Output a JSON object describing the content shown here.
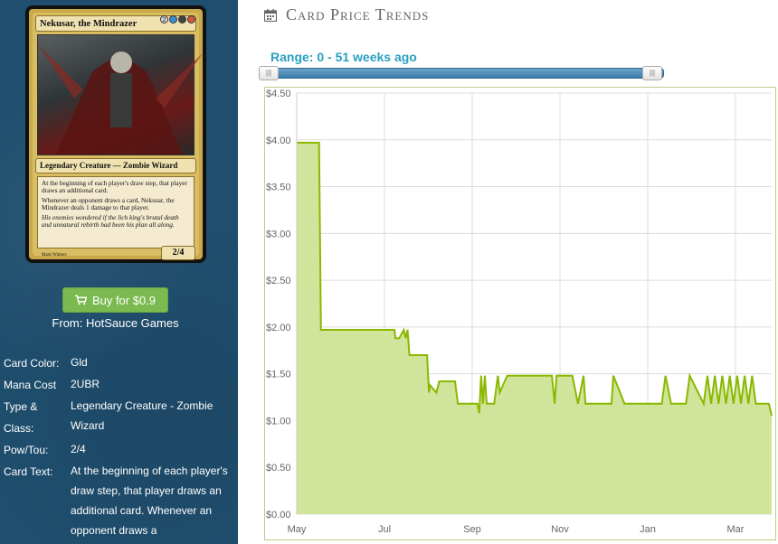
{
  "card": {
    "name": "Nekusar, the Mindrazer",
    "mana_symbols": [
      "2",
      "U",
      "B",
      "R"
    ],
    "type_line": "Legendary Creature — Zombie Wizard",
    "rules_text": [
      "At the beginning of each player's draw step, that player draws an additional card.",
      "Whenever an opponent draws a card, Nekusar, the Mindrazer deals 1 damage to that player."
    ],
    "flavor_text": "His enemies wondered if the lich king's brutal death and unnatural rebirth had been his plan all along.",
    "power_toughness": "2/4",
    "artist": "Mark Winters"
  },
  "buy": {
    "label": "Buy for $0.9",
    "from": "From: HotSauce Games",
    "icon": "cart-icon"
  },
  "properties": [
    {
      "key": "Card Color:",
      "value": "Gld"
    },
    {
      "key": "Mana Cost",
      "value": "2UBR"
    },
    {
      "key": "Type & Class:",
      "value": "Legendary Creature - Zombie Wizard"
    },
    {
      "key": "Pow/Tou:",
      "value": "2/4"
    },
    {
      "key": "Card Text:",
      "value": "At the beginning of each player's draw step, that player draws an additional card. Whenever an opponent draws a"
    }
  ],
  "trends": {
    "title": "Card Price Trends",
    "icon": "calendar-icon",
    "range_label": "Range: 0 - 51 weeks ago",
    "range_start": 0,
    "range_end": 51
  },
  "chart_data": {
    "type": "area",
    "y_ticks": [
      "$0.00",
      "$0.50",
      "$1.00",
      "$1.50",
      "$2.00",
      "$2.50",
      "$3.00",
      "$3.50",
      "$4.00",
      "$4.50"
    ],
    "x_ticks": [
      "May",
      "Jul",
      "Sep",
      "Nov",
      "Jan",
      "Mar"
    ],
    "ylim": [
      0,
      4.5
    ],
    "grid": true,
    "colors": {
      "line": "#8ab800",
      "fill": "#cfe396"
    },
    "series": [
      {
        "x": [
          0,
          2.2,
          2.4,
          2.6,
          8.3,
          10.5,
          10.6,
          11.0,
          11.5,
          11.7,
          11.9,
          12.1,
          12.3,
          12.5,
          12.9,
          13.2,
          14.0,
          14.2,
          14.3,
          15.0,
          15.3,
          15.7,
          15.9,
          16.2,
          16.6,
          17.0,
          17.3,
          17.5,
          17.7,
          19.4,
          19.6,
          19.8,
          20.0,
          20.2,
          20.4,
          21.0,
          21.2,
          21.6,
          21.8,
          22.6,
          23.4,
          27.4,
          27.7,
          27.9,
          28.2,
          29.6,
          30.2,
          30.8,
          31.0,
          33.8,
          34.0,
          35.2,
          39.2,
          39.6,
          40.2,
          41.8,
          42.2,
          43.7,
          44.1,
          44.5,
          44.9,
          45.3,
          45.7,
          46.1,
          46.5,
          46.9,
          47.3,
          47.7,
          48.1,
          48.5,
          48.9,
          49.3,
          50.7,
          51.0
        ],
        "y": [
          3.97,
          3.97,
          3.97,
          1.97,
          1.97,
          1.97,
          1.88,
          1.88,
          1.97,
          1.88,
          1.97,
          1.7,
          1.7,
          1.7,
          1.7,
          1.7,
          1.7,
          1.3,
          1.38,
          1.3,
          1.42,
          1.42,
          1.42,
          1.42,
          1.42,
          1.42,
          1.18,
          1.18,
          1.18,
          1.18,
          1.08,
          1.48,
          1.18,
          1.48,
          1.18,
          1.18,
          1.18,
          1.48,
          1.3,
          1.48,
          1.48,
          1.48,
          1.18,
          1.48,
          1.48,
          1.48,
          1.18,
          1.48,
          1.18,
          1.18,
          1.48,
          1.18,
          1.18,
          1.48,
          1.18,
          1.18,
          1.48,
          1.18,
          1.48,
          1.18,
          1.48,
          1.18,
          1.48,
          1.18,
          1.48,
          1.18,
          1.48,
          1.18,
          1.48,
          1.18,
          1.48,
          1.18,
          1.18,
          1.05
        ]
      }
    ]
  }
}
